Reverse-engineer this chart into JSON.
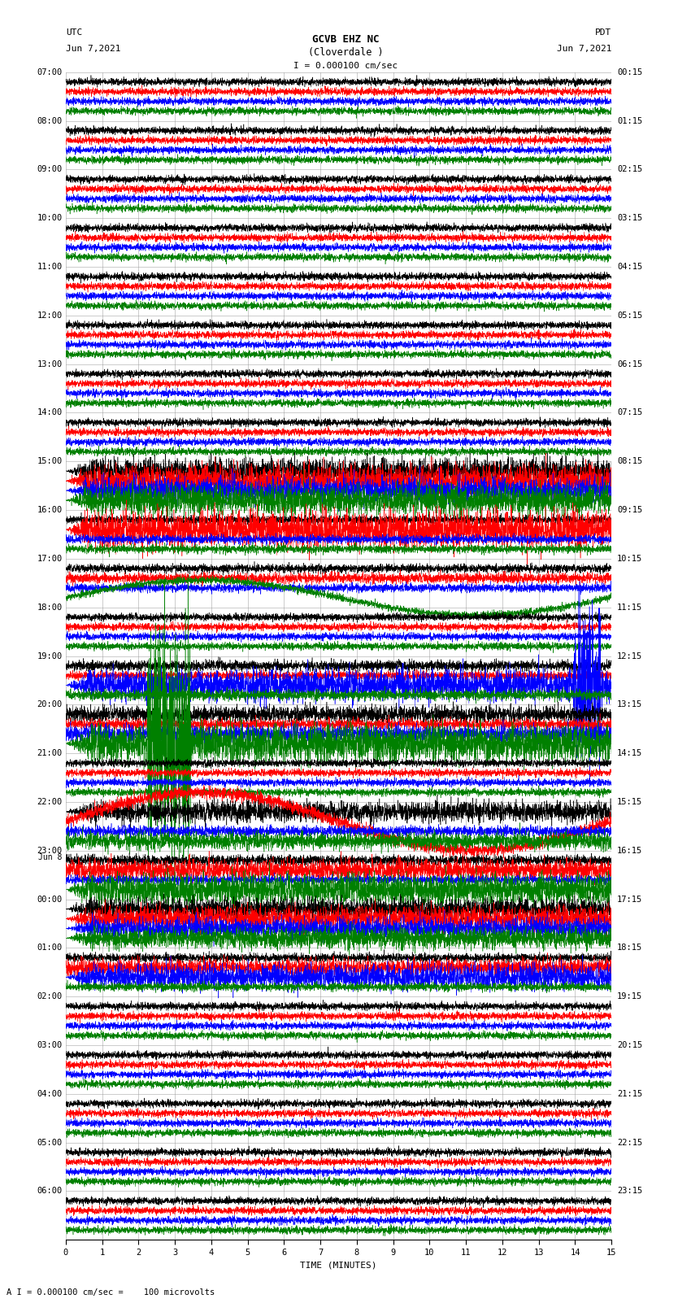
{
  "title_line1": "GCVB EHZ NC",
  "title_line2": "(Cloverdale )",
  "scale_text": "I = 0.000100 cm/sec",
  "footer_text": "A I = 0.000100 cm/sec =    100 microvolts",
  "utc_label": "UTC",
  "utc_date": "Jun 7,2021",
  "pdt_label": "PDT",
  "pdt_date": "Jun 7,2021",
  "xlabel": "TIME (MINUTES)",
  "left_times": [
    "07:00",
    "08:00",
    "09:00",
    "10:00",
    "11:00",
    "12:00",
    "13:00",
    "14:00",
    "15:00",
    "16:00",
    "17:00",
    "18:00",
    "19:00",
    "20:00",
    "21:00",
    "22:00",
    "23:00",
    "Jun 8",
    "00:00",
    "01:00",
    "02:00",
    "03:00",
    "04:00",
    "05:00",
    "06:00"
  ],
  "right_times": [
    "00:15",
    "01:15",
    "02:15",
    "03:15",
    "04:15",
    "05:15",
    "06:15",
    "07:15",
    "08:15",
    "09:15",
    "10:15",
    "11:15",
    "12:15",
    "13:15",
    "14:15",
    "15:15",
    "16:15",
    "17:15",
    "18:15",
    "19:15",
    "20:15",
    "21:15",
    "22:15",
    "23:15"
  ],
  "n_rows": 24,
  "n_traces_per_row": 4,
  "trace_colors": [
    "black",
    "red",
    "blue",
    "green"
  ],
  "background_color": "white",
  "grid_color": "#999999",
  "xlim": [
    0,
    15
  ],
  "xticks": [
    0,
    1,
    2,
    3,
    4,
    5,
    6,
    7,
    8,
    9,
    10,
    11,
    12,
    13,
    14,
    15
  ],
  "figsize": [
    8.5,
    16.13
  ],
  "dpi": 100,
  "n_points": 4500
}
